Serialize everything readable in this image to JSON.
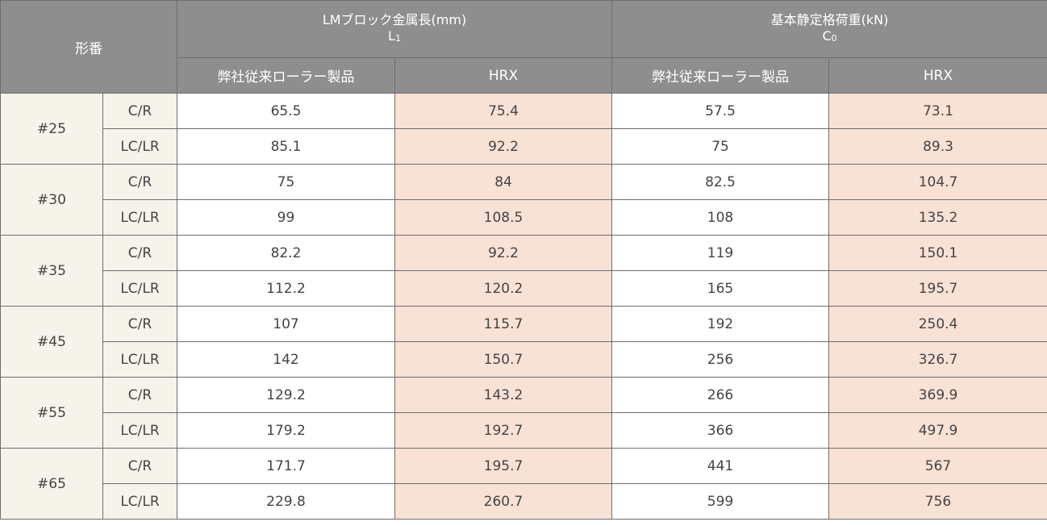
{
  "header": {
    "model_label": "形番",
    "groups": [
      {
        "title": "LMブロック金属長(mm)",
        "symbol_main": "L",
        "symbol_sub": "1"
      },
      {
        "title": "基本静定格荷重(kN)",
        "symbol_main": "C",
        "symbol_sub": "0"
      }
    ],
    "subheaders": [
      "弊社従来ローラー製品",
      "HRX",
      "弊社従来ローラー製品",
      "HRX"
    ]
  },
  "rows": [
    {
      "model": "#25",
      "variants": [
        {
          "type": "C/R",
          "values": [
            "65.5",
            "75.4",
            "57.5",
            "73.1"
          ]
        },
        {
          "type": "LC/LR",
          "values": [
            "85.1",
            "92.2",
            "75",
            "89.3"
          ]
        }
      ]
    },
    {
      "model": "#30",
      "variants": [
        {
          "type": "C/R",
          "values": [
            "75",
            "84",
            "82.5",
            "104.7"
          ]
        },
        {
          "type": "LC/LR",
          "values": [
            "99",
            "108.5",
            "108",
            "135.2"
          ]
        }
      ]
    },
    {
      "model": "#35",
      "variants": [
        {
          "type": "C/R",
          "values": [
            "82.2",
            "92.2",
            "119",
            "150.1"
          ]
        },
        {
          "type": "LC/LR",
          "values": [
            "112.2",
            "120.2",
            "165",
            "195.7"
          ]
        }
      ]
    },
    {
      "model": "#45",
      "variants": [
        {
          "type": "C/R",
          "values": [
            "107",
            "115.7",
            "192",
            "250.4"
          ]
        },
        {
          "type": "LC/LR",
          "values": [
            "142",
            "150.7",
            "256",
            "326.7"
          ]
        }
      ]
    },
    {
      "model": "#55",
      "variants": [
        {
          "type": "C/R",
          "values": [
            "129.2",
            "143.2",
            "266",
            "369.9"
          ]
        },
        {
          "type": "LC/LR",
          "values": [
            "179.2",
            "192.7",
            "366",
            "497.9"
          ]
        }
      ]
    },
    {
      "model": "#65",
      "variants": [
        {
          "type": "C/R",
          "values": [
            "171.7",
            "195.7",
            "441",
            "567"
          ]
        },
        {
          "type": "LC/LR",
          "values": [
            "229.8",
            "260.7",
            "599",
            "756"
          ]
        }
      ]
    }
  ],
  "colors": {
    "header_bg": "#8e8e8e",
    "model_bg": "#f5f3ea",
    "hrx_bg": "#f8e1d5",
    "border": "#6e6e6e"
  }
}
